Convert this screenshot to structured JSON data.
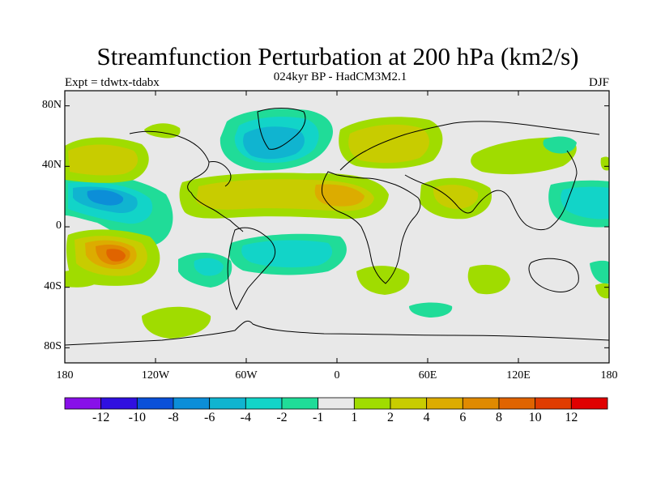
{
  "title": "Streamfunction Perturbation at 200 hPa (km2/s)",
  "subtitle": "024kyr BP - HadCM3M2.1",
  "left_label": "Expt = tdwtx-tdabx",
  "right_label": "DJF",
  "map": {
    "projection": "cylindrical-equidistant",
    "lon_range": [
      -180,
      180
    ],
    "lat_range": [
      -90,
      90
    ],
    "lat_ticks": [
      {
        "lat": 80,
        "label": "80N"
      },
      {
        "lat": 40,
        "label": "40N"
      },
      {
        "lat": 0,
        "label": "0"
      },
      {
        "lat": -40,
        "label": "40S"
      },
      {
        "lat": -80,
        "label": "80S"
      }
    ],
    "lon_ticks": [
      {
        "lon": -180,
        "label": "180"
      },
      {
        "lon": -120,
        "label": "120W"
      },
      {
        "lon": -60,
        "label": "60W"
      },
      {
        "lon": 0,
        "label": "0"
      },
      {
        "lon": 60,
        "label": "60E"
      },
      {
        "lon": 120,
        "label": "120E"
      },
      {
        "lon": 180,
        "label": "180"
      }
    ],
    "background_color": "#e8e8e8",
    "contour_colors": {
      "neg6": "#0c8ed8",
      "neg4": "#10b4d0",
      "neg2": "#12d4c8",
      "neg1": "#20dc98",
      "pos1": "#a0dc00",
      "pos2": "#c8cc00",
      "pos4": "#dcac00",
      "pos6": "#e08a00",
      "pos8": "#e06400"
    }
  },
  "colorbar": {
    "colors": [
      "#8810e8",
      "#3010e0",
      "#0a50d8",
      "#0c8ed8",
      "#10b4d0",
      "#12d4c8",
      "#20dc98",
      "#e8e8e8",
      "#a0dc00",
      "#c8cc00",
      "#dcac00",
      "#e08a00",
      "#e06400",
      "#e03c00",
      "#e00000"
    ],
    "labels": [
      "-12",
      "-10",
      "-8",
      "-6",
      "-4",
      "-2",
      "-1",
      "1",
      "2",
      "4",
      "6",
      "8",
      "10",
      "12"
    ]
  }
}
